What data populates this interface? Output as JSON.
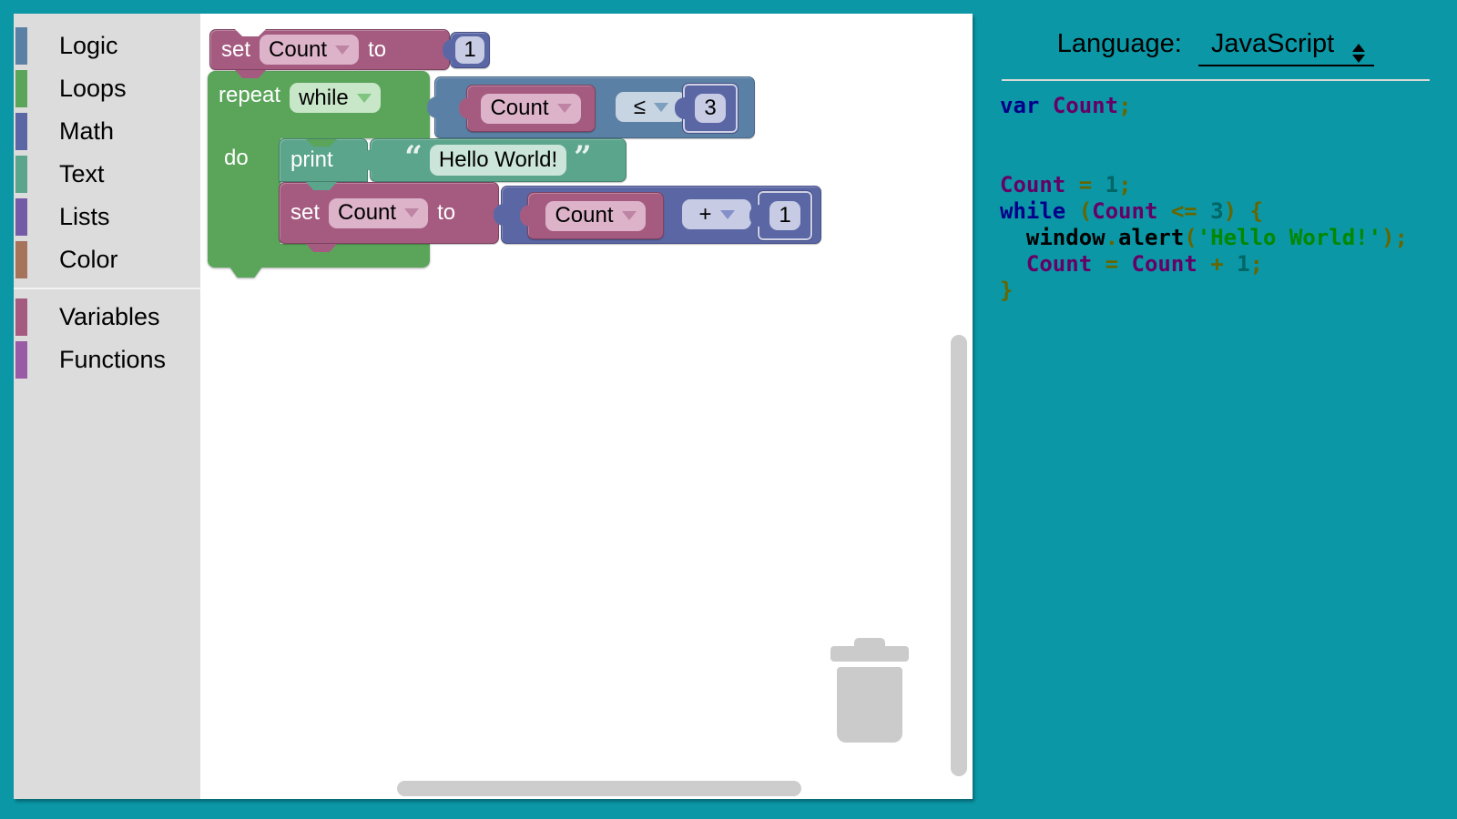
{
  "frame": {
    "background": "#0b97a6"
  },
  "toolbox": {
    "categories": [
      {
        "label": "Logic",
        "color": "#5b80a5"
      },
      {
        "label": "Loops",
        "color": "#5ba55b"
      },
      {
        "label": "Math",
        "color": "#5b67a5"
      },
      {
        "label": "Text",
        "color": "#5ba58c"
      },
      {
        "label": "Lists",
        "color": "#745ba5"
      },
      {
        "label": "Color",
        "color": "#a5745b"
      },
      {
        "label": "Variables",
        "color": "#a55b80"
      },
      {
        "label": "Functions",
        "color": "#995ba5"
      }
    ]
  },
  "workspace": {
    "set1": {
      "label_set": "set",
      "var": "Count",
      "label_to": "to",
      "value": "1"
    },
    "repeat": {
      "label": "repeat",
      "mode": "while"
    },
    "compare": {
      "var": "Count",
      "op": "≤",
      "value": "3"
    },
    "do_label": "do",
    "print": {
      "label": "print",
      "open_quote": "“",
      "text": "Hello World!",
      "close_quote": "”"
    },
    "set2": {
      "label_set": "set",
      "var": "Count",
      "label_to": "to"
    },
    "arith": {
      "var": "Count",
      "op": "+",
      "value": "1"
    },
    "block_colors": {
      "variables": "#a55b80",
      "loops": "#5ba55b",
      "logic": "#5b80a5",
      "math": "#5b67a5",
      "text": "#5ba58c"
    }
  },
  "code_panel": {
    "language_label": "Language:",
    "language_value": "JavaScript",
    "token_colors": {
      "pln": "#000000",
      "kwd": "#000088",
      "typ": "#660066",
      "lit": "#006666",
      "pun": "#666600",
      "str": "#008800"
    },
    "lines": [
      [
        [
          "kwd",
          "var"
        ],
        [
          "pln",
          " "
        ],
        [
          "typ",
          "Count"
        ],
        [
          "pun",
          ";"
        ]
      ],
      [],
      [],
      [
        [
          "typ",
          "Count"
        ],
        [
          "pln",
          " "
        ],
        [
          "pun",
          "="
        ],
        [
          "pln",
          " "
        ],
        [
          "lit",
          "1"
        ],
        [
          "pun",
          ";"
        ]
      ],
      [
        [
          "kwd",
          "while"
        ],
        [
          "pln",
          " "
        ],
        [
          "pun",
          "("
        ],
        [
          "typ",
          "Count"
        ],
        [
          "pln",
          " "
        ],
        [
          "pun",
          "<="
        ],
        [
          "pln",
          " "
        ],
        [
          "lit",
          "3"
        ],
        [
          "pun",
          ")"
        ],
        [
          "pln",
          " "
        ],
        [
          "pun",
          "{"
        ]
      ],
      [
        [
          "pln",
          "  window"
        ],
        [
          "pun",
          "."
        ],
        [
          "pln",
          "alert"
        ],
        [
          "pun",
          "("
        ],
        [
          "str",
          "'Hello World!'"
        ],
        [
          "pun",
          ");"
        ]
      ],
      [
        [
          "pln",
          "  "
        ],
        [
          "typ",
          "Count"
        ],
        [
          "pln",
          " "
        ],
        [
          "pun",
          "="
        ],
        [
          "pln",
          " "
        ],
        [
          "typ",
          "Count"
        ],
        [
          "pln",
          " "
        ],
        [
          "pun",
          "+"
        ],
        [
          "pln",
          " "
        ],
        [
          "lit",
          "1"
        ],
        [
          "pun",
          ";"
        ]
      ],
      [
        [
          "pun",
          "}"
        ]
      ]
    ]
  }
}
